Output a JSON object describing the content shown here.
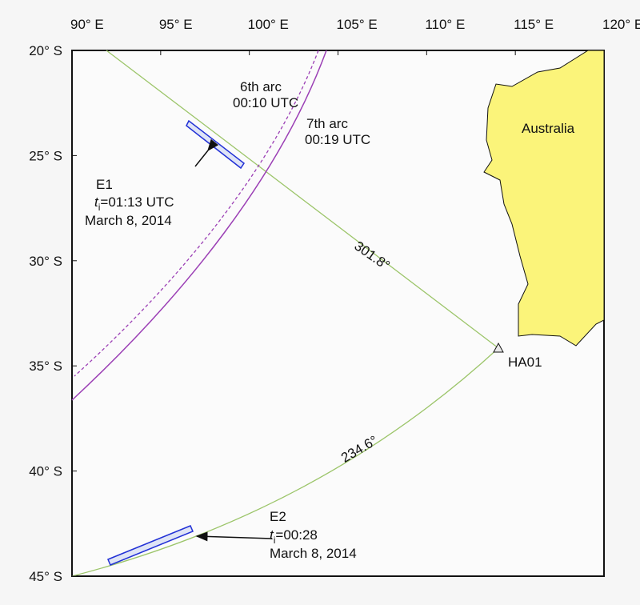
{
  "map": {
    "lon_ticks": [
      {
        "value": 90,
        "label": "90° E"
      },
      {
        "value": 95,
        "label": "95° E"
      },
      {
        "value": 100,
        "label": "100° E"
      },
      {
        "value": 105,
        "label": "105° E"
      },
      {
        "value": 110,
        "label": "110° E"
      },
      {
        "value": 115,
        "label": "115° E"
      },
      {
        "value": 120,
        "label": "120° E"
      }
    ],
    "lat_ticks": [
      {
        "value": -20,
        "label": "20° S"
      },
      {
        "value": -25,
        "label": "25° S"
      },
      {
        "value": -30,
        "label": "30° S"
      },
      {
        "value": -35,
        "label": "35° S"
      },
      {
        "value": -40,
        "label": "40° S"
      },
      {
        "value": -45,
        "label": "45° S"
      }
    ],
    "land_label": "Australia",
    "station": "HA01",
    "arcs": [
      {
        "name": "6th arc",
        "time": "00:10 UTC"
      },
      {
        "name": "7th arc",
        "time": "00:19 UTC"
      }
    ],
    "bearings": [
      "301.8°",
      "234.6°"
    ],
    "events": [
      {
        "name": "E1",
        "var": "t",
        "sub": "i",
        "time": "=01:13 UTC",
        "date": "March 8, 2014"
      },
      {
        "name": "E2",
        "var": "t",
        "sub": "i",
        "time": "=00:28",
        "date": "March 8, 2014"
      }
    ]
  }
}
